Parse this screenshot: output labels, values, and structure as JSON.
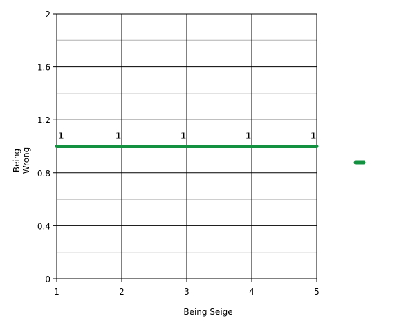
{
  "chart_data": {
    "type": "line",
    "title": "",
    "xlabel": "Being Seige",
    "ylabel": "Being Wrong",
    "x": [
      1,
      2,
      3,
      4,
      5
    ],
    "series": [
      {
        "values": [
          1,
          1,
          1,
          1,
          1
        ],
        "color": "#139040",
        "data_labels": [
          "1",
          "1",
          "1",
          "1",
          "1"
        ]
      }
    ],
    "xlim": [
      1,
      5
    ],
    "ylim": [
      0,
      2
    ],
    "xticks": [
      "1",
      "2",
      "3",
      "4",
      "5"
    ],
    "yticks": [
      "0",
      "0.4",
      "0.8",
      "1.2",
      "1.6",
      "2"
    ],
    "grid": true,
    "legend": "right"
  }
}
